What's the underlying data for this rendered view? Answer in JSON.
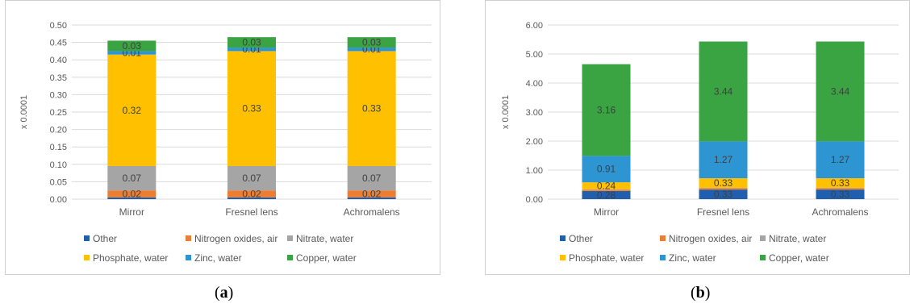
{
  "captions": [
    {
      "open": "(",
      "letter": "a",
      "close": ")"
    },
    {
      "open": "(",
      "letter": "b",
      "close": ")"
    }
  ],
  "chart_data": [
    {
      "type": "bar",
      "stacked": true,
      "ylabel": "x 0.0001",
      "ylim": [
        0,
        0.5
      ],
      "yticks": [
        "0.00",
        "0.05",
        "0.10",
        "0.15",
        "0.20",
        "0.25",
        "0.30",
        "0.35",
        "0.40",
        "0.45",
        "0.50"
      ],
      "grid": true,
      "legend_position": "bottom",
      "categories": [
        "Mirror",
        "Fresnel lens",
        "Achromalens"
      ],
      "series": [
        {
          "name": "Other",
          "color": "#1f5fae",
          "values": [
            0.005,
            0.005,
            0.005
          ],
          "labels": [
            "",
            "",
            ""
          ]
        },
        {
          "name": "Nitrogen oxides, air",
          "color": "#ed7d31",
          "values": [
            0.02,
            0.02,
            0.02
          ],
          "labels": [
            "0.02",
            "0.02",
            "0.02"
          ]
        },
        {
          "name": "Nitrate, water",
          "color": "#a5a5a5",
          "values": [
            0.07,
            0.07,
            0.07
          ],
          "labels": [
            "0.07",
            "0.07",
            "0.07"
          ]
        },
        {
          "name": "Phosphate, water",
          "color": "#ffc000",
          "values": [
            0.32,
            0.33,
            0.33
          ],
          "labels": [
            "0.32",
            "0.33",
            "0.33"
          ]
        },
        {
          "name": "Zinc, water",
          "color": "#2e95d3",
          "values": [
            0.01,
            0.01,
            0.01
          ],
          "labels": [
            "0.01",
            "0.01",
            "0.01"
          ]
        },
        {
          "name": "Copper, water",
          "color": "#3aa342",
          "values": [
            0.03,
            0.03,
            0.03
          ],
          "labels": [
            "0.03",
            "0.03",
            "0.03"
          ]
        }
      ]
    },
    {
      "type": "bar",
      "stacked": true,
      "ylabel": "x 0.0001",
      "ylim": [
        0,
        6
      ],
      "yticks": [
        "0.00",
        "1.00",
        "2.00",
        "3.00",
        "4.00",
        "5.00",
        "6.00"
      ],
      "grid": true,
      "legend_position": "bottom",
      "categories": [
        "Mirror",
        "Fresnel lens",
        "Achromalens"
      ],
      "series": [
        {
          "name": "Other",
          "color": "#1f5fae",
          "values": [
            0.28,
            0.33,
            0.33
          ],
          "labels": [
            "0.28",
            "0.33",
            "0.33"
          ]
        },
        {
          "name": "Nitrogen oxides, air",
          "color": "#ed7d31",
          "values": [
            0.05,
            0.05,
            0.05
          ],
          "labels": [
            "",
            "",
            ""
          ]
        },
        {
          "name": "Nitrate, water",
          "color": "#a5a5a5",
          "values": [
            0.01,
            0.01,
            0.01
          ],
          "labels": [
            "",
            "",
            ""
          ]
        },
        {
          "name": "Phosphate, water",
          "color": "#ffc000",
          "values": [
            0.24,
            0.33,
            0.33
          ],
          "labels": [
            "0.24",
            "0.33",
            "0.33"
          ]
        },
        {
          "name": "Zinc, water",
          "color": "#2e95d3",
          "values": [
            0.91,
            1.27,
            1.27
          ],
          "labels": [
            "0.91",
            "1.27",
            "1.27"
          ]
        },
        {
          "name": "Copper, water",
          "color": "#3aa342",
          "values": [
            3.16,
            3.44,
            3.44
          ],
          "labels": [
            "3.16",
            "3.44",
            "3.44"
          ]
        }
      ]
    }
  ]
}
